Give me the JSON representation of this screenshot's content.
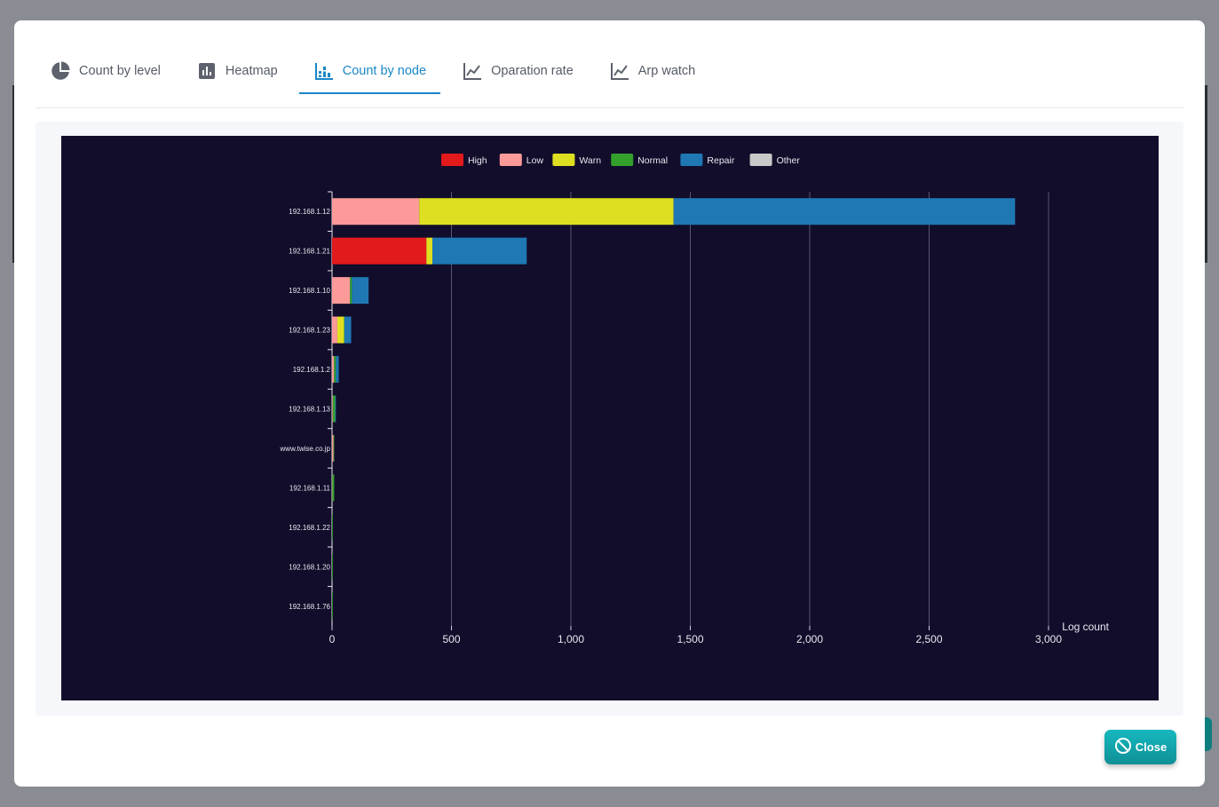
{
  "tabs": [
    {
      "label": "Count by level",
      "icon": "pie-chart-icon",
      "active": false
    },
    {
      "label": "Heatmap",
      "icon": "bar-chart-box-icon",
      "active": false
    },
    {
      "label": "Count by node",
      "icon": "stacked-bar-chart-icon",
      "active": true
    },
    {
      "label": "Oparation rate",
      "icon": "line-chart-icon",
      "active": false
    },
    {
      "label": "Arp watch",
      "icon": "line-chart-icon",
      "active": false
    }
  ],
  "close_button": {
    "label": "Close",
    "icon": "ban-icon"
  },
  "colors": {
    "accent": "#1a86c7",
    "chart_bg": "#120d2b",
    "close": "#12a7ae"
  },
  "chart_data": {
    "type": "bar",
    "orientation": "horizontal",
    "stacked": true,
    "categories": [
      "192.168.1.12",
      "192.168.1.21",
      "192.168.1.10",
      "192.168.1.23",
      "192.168.1.2",
      "192.168.1.13",
      "www.twise.co.jp",
      "192.168.1.11",
      "192.168.1.22",
      "192.168.1.20",
      "192.168.1.76"
    ],
    "series": [
      {
        "name": "High",
        "color": "#e31a1c",
        "values": [
          0,
          395,
          0,
          0,
          0,
          0,
          0,
          0,
          0,
          0,
          0
        ]
      },
      {
        "name": "Low",
        "color": "#fb9a99",
        "values": [
          365,
          0,
          75,
          22,
          8,
          3,
          6,
          1,
          0,
          0,
          0
        ]
      },
      {
        "name": "Warn",
        "color": "#dfdf22",
        "values": [
          1065,
          25,
          0,
          28,
          0,
          0,
          0,
          0,
          0,
          0,
          0
        ]
      },
      {
        "name": "Normal",
        "color": "#33a02c",
        "values": [
          0,
          0,
          8,
          2,
          8,
          10,
          3,
          8,
          3,
          3,
          2
        ]
      },
      {
        "name": "Repair",
        "color": "#1f78b4",
        "values": [
          1430,
          395,
          70,
          28,
          12,
          1,
          0,
          0,
          0,
          0,
          0
        ]
      },
      {
        "name": "Other",
        "color": "#c8c8c8",
        "values": [
          0,
          0,
          0,
          0,
          0,
          0,
          0,
          0,
          0,
          0,
          0
        ]
      }
    ],
    "xlabel": "Log count",
    "xlim": [
      0,
      3000
    ],
    "xticks": [
      "0",
      "500",
      "1,000",
      "1,500",
      "2,000",
      "2,500",
      "3,000"
    ],
    "legend_position": "top",
    "grid": true
  }
}
